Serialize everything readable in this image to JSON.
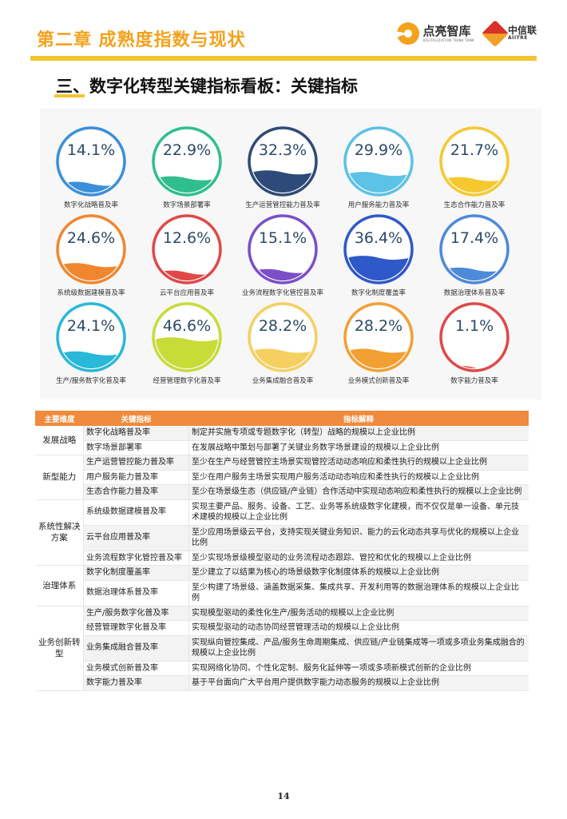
{
  "header": {
    "chapter_title": "第二章  成熟度指数与现状",
    "logo1_name": "点亮智库",
    "logo1_sub": "DIGITALIZATION THINK TANK",
    "logo2_name": "中信联",
    "logo2_sub": "AIITRE"
  },
  "section_title": "三、数字化转型关键指标看板：关键指标",
  "gauges": [
    {
      "label": "数字化战略普及率",
      "value": "14.1%",
      "level": 0.141,
      "color": "#3a8fd8"
    },
    {
      "label": "数字场景部署率",
      "value": "22.9%",
      "level": 0.229,
      "color": "#2fbf8f"
    },
    {
      "label": "生产运营管控能力普及率",
      "value": "32.3%",
      "level": 0.323,
      "color": "#2e4a78"
    },
    {
      "label": "用户服务能力普及率",
      "value": "29.9%",
      "level": 0.299,
      "color": "#5cc2e6"
    },
    {
      "label": "生态合作能力普及率",
      "value": "21.7%",
      "level": 0.217,
      "color": "#f5c92e"
    },
    {
      "label": "系统级数据建模普及率",
      "value": "24.6%",
      "level": 0.246,
      "color": "#f0872f"
    },
    {
      "label": "云平台应用普及率",
      "value": "12.6%",
      "level": 0.126,
      "color": "#e04848"
    },
    {
      "label": "业务流程数字化管控普及率",
      "value": "15.1%",
      "level": 0.151,
      "color": "#7a4fc8"
    },
    {
      "label": "数字化制度覆盖率",
      "value": "36.4%",
      "level": 0.364,
      "color": "#2f58c8"
    },
    {
      "label": "数据治理体系普及率",
      "value": "17.4%",
      "level": 0.174,
      "color": "#4d8ad8"
    },
    {
      "label": "生产/服务数字化普及率",
      "value": "24.1%",
      "level": 0.241,
      "color": "#28b8d8"
    },
    {
      "label": "经营管理数字化普及率",
      "value": "46.6%",
      "level": 0.466,
      "color": "#c8dc38"
    },
    {
      "label": "业务集成融合普及率",
      "value": "28.2%",
      "level": 0.282,
      "color": "#f5d060"
    },
    {
      "label": "业务模式创新普及率",
      "value": "28.2%",
      "level": 0.282,
      "color": "#f2a033"
    },
    {
      "label": "数字能力普及率",
      "value": "1.1%",
      "level": 0.011,
      "color": "#e04848"
    }
  ],
  "table": {
    "headers": [
      "主要维度",
      "关键指标",
      "指标解释"
    ],
    "groups": [
      {
        "dimension": "发展战略",
        "rows": [
          {
            "indicator": "数字化战略普及率",
            "desc": "制定并实施专项或专题数字化（转型）战略的规模以上企业比例"
          },
          {
            "indicator": "数字场景部署率",
            "desc": "在发展战略中策划与部署了关键业务数字场景建设的规模以上企业比例"
          }
        ]
      },
      {
        "dimension": "新型能力",
        "rows": [
          {
            "indicator": "生产运营管控能力普及率",
            "desc": "至少在生产与经营管控主场景实现管控活动动态响应和柔性执行的规模以上企业比例"
          },
          {
            "indicator": "用户服务能力普及率",
            "desc": "至少在用户服务主场景实现用户服务活动动态响应和柔性执行的规模以上企业比例"
          },
          {
            "indicator": "生态合作能力普及率",
            "desc": "至少在场景级生态（供应链/产业链）合作活动中实现动态响应和柔性执行的规模以上企业比例"
          }
        ]
      },
      {
        "dimension": "系统性解决方案",
        "rows": [
          {
            "indicator": "系统级数据建模普及率",
            "desc": "实现主要产品、服务、设备、工艺、业务等系统级数字化建模，而不仅仅是单一设备、单元技术建模的规模以上企业比例"
          },
          {
            "indicator": "云平台应用普及率",
            "desc": "至少应用场景级云平台，支持实现关键业务知识、能力的云化动态共享与优化的规模以上企业比例"
          },
          {
            "indicator": "业务流程数字化管控普及率",
            "desc": "至少实现场景级模型驱动的业务流程动态跟踪、管控和优化的规模以上企业比例"
          }
        ]
      },
      {
        "dimension": "治理体系",
        "rows": [
          {
            "indicator": "数字化制度覆盖率",
            "desc": "至少建立了以结果为核心的场景级数字化制度体系的规模以上企业比例"
          },
          {
            "indicator": "数据治理体系普及率",
            "desc": "至少构建了场景级、涵盖数据采集、集成共享、开发利用等的数据治理体系的规模以上企业比例"
          }
        ]
      },
      {
        "dimension": "业务创新转型",
        "rows": [
          {
            "indicator": "生产/服务数字化普及率",
            "desc": "实现模型驱动的柔性化生产/服务活动的规模以上企业比例"
          },
          {
            "indicator": "经营管理数字化普及率",
            "desc": "实现模型驱动的动态协同经营管理活动的规模以上企业比例"
          },
          {
            "indicator": "业务集成融合普及率",
            "desc": "实现纵向管控集成、产品/服务生命周期集成、供应链/产业链集成等一项或多项业务集成融合的规模以上企业比例"
          },
          {
            "indicator": "业务模式创新普及率",
            "desc": "实现网络化协同、个性化定制、服务化延伸等一项或多项新模式创新的企业比例"
          },
          {
            "indicator": "数字能力普及率",
            "desc": "基于平台面向广大平台用户提供数字能力动态服务的规模以上企业比例"
          }
        ]
      }
    ]
  },
  "page_number": "14"
}
